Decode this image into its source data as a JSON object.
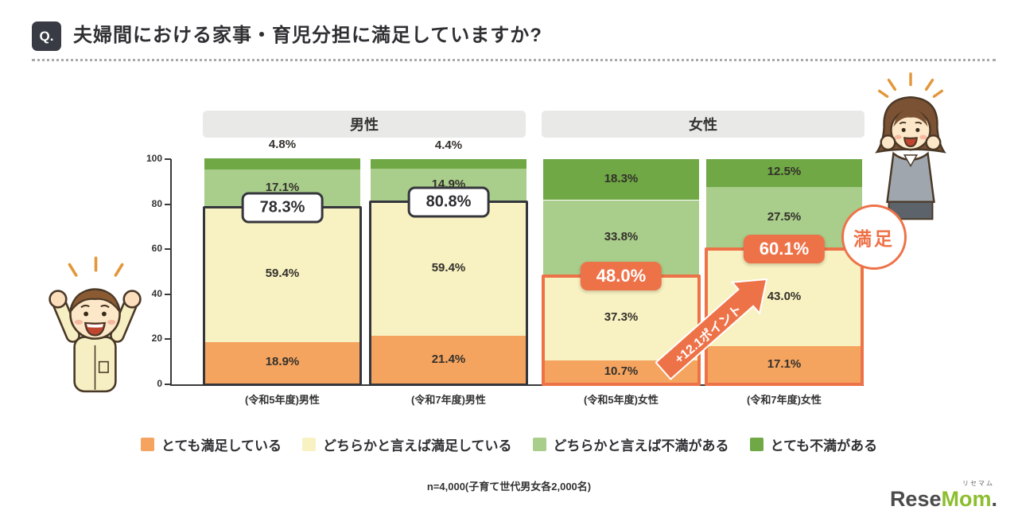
{
  "header": {
    "badge": "Q.",
    "title": "夫婦間における家事・育児分担に満足していますか?"
  },
  "chart_data": {
    "type": "stacked_bar",
    "ylim": [
      0,
      100
    ],
    "y_ticks": [
      0,
      20,
      40,
      60,
      80,
      100
    ],
    "groups": [
      {
        "label": "男性"
      },
      {
        "label": "女性"
      }
    ],
    "series_names": [
      "とても満足している",
      "どちらかと言えば満足している",
      "どちらかと言えば不満がある",
      "とても不満がある"
    ],
    "series_colors": [
      "#F5A45F",
      "#F8F1C1",
      "#A9CD8B",
      "#6FA844"
    ],
    "categories": [
      "(令和5年度)男性",
      "(令和7年度)男性",
      "(令和5年度)女性",
      "(令和7年度)女性"
    ],
    "bars": [
      {
        "category": "(令和5年度)男性",
        "values": [
          18.9,
          59.4,
          17.1,
          4.8
        ],
        "satisfied_total": 78.3,
        "highlight": "dark"
      },
      {
        "category": "(令和7年度)男性",
        "values": [
          21.4,
          59.4,
          14.9,
          4.4
        ],
        "satisfied_total": 80.8,
        "highlight": "dark"
      },
      {
        "category": "(令和5年度)女性",
        "values": [
          10.7,
          37.3,
          33.8,
          18.3
        ],
        "satisfied_total": 48.0,
        "highlight": "orange"
      },
      {
        "category": "(令和7年度)女性",
        "values": [
          17.1,
          43.0,
          27.5,
          12.5
        ],
        "satisfied_total": 60.1,
        "highlight": "orange"
      }
    ],
    "annotations": {
      "arrow_label": "+12.1ポイント",
      "badge_label": "満足"
    },
    "colors": {
      "highlight_orange": "#EE7248",
      "outline_dark": "#35363C"
    }
  },
  "footnote": "n=4,000(子育て世代男女各2,000名)",
  "logo": {
    "part1": "Rese",
    "part2": "Mom",
    "dot": ".",
    "ruby": "リセマム",
    "green": "#8CBE2F",
    "gray": "#4B4B4B"
  }
}
